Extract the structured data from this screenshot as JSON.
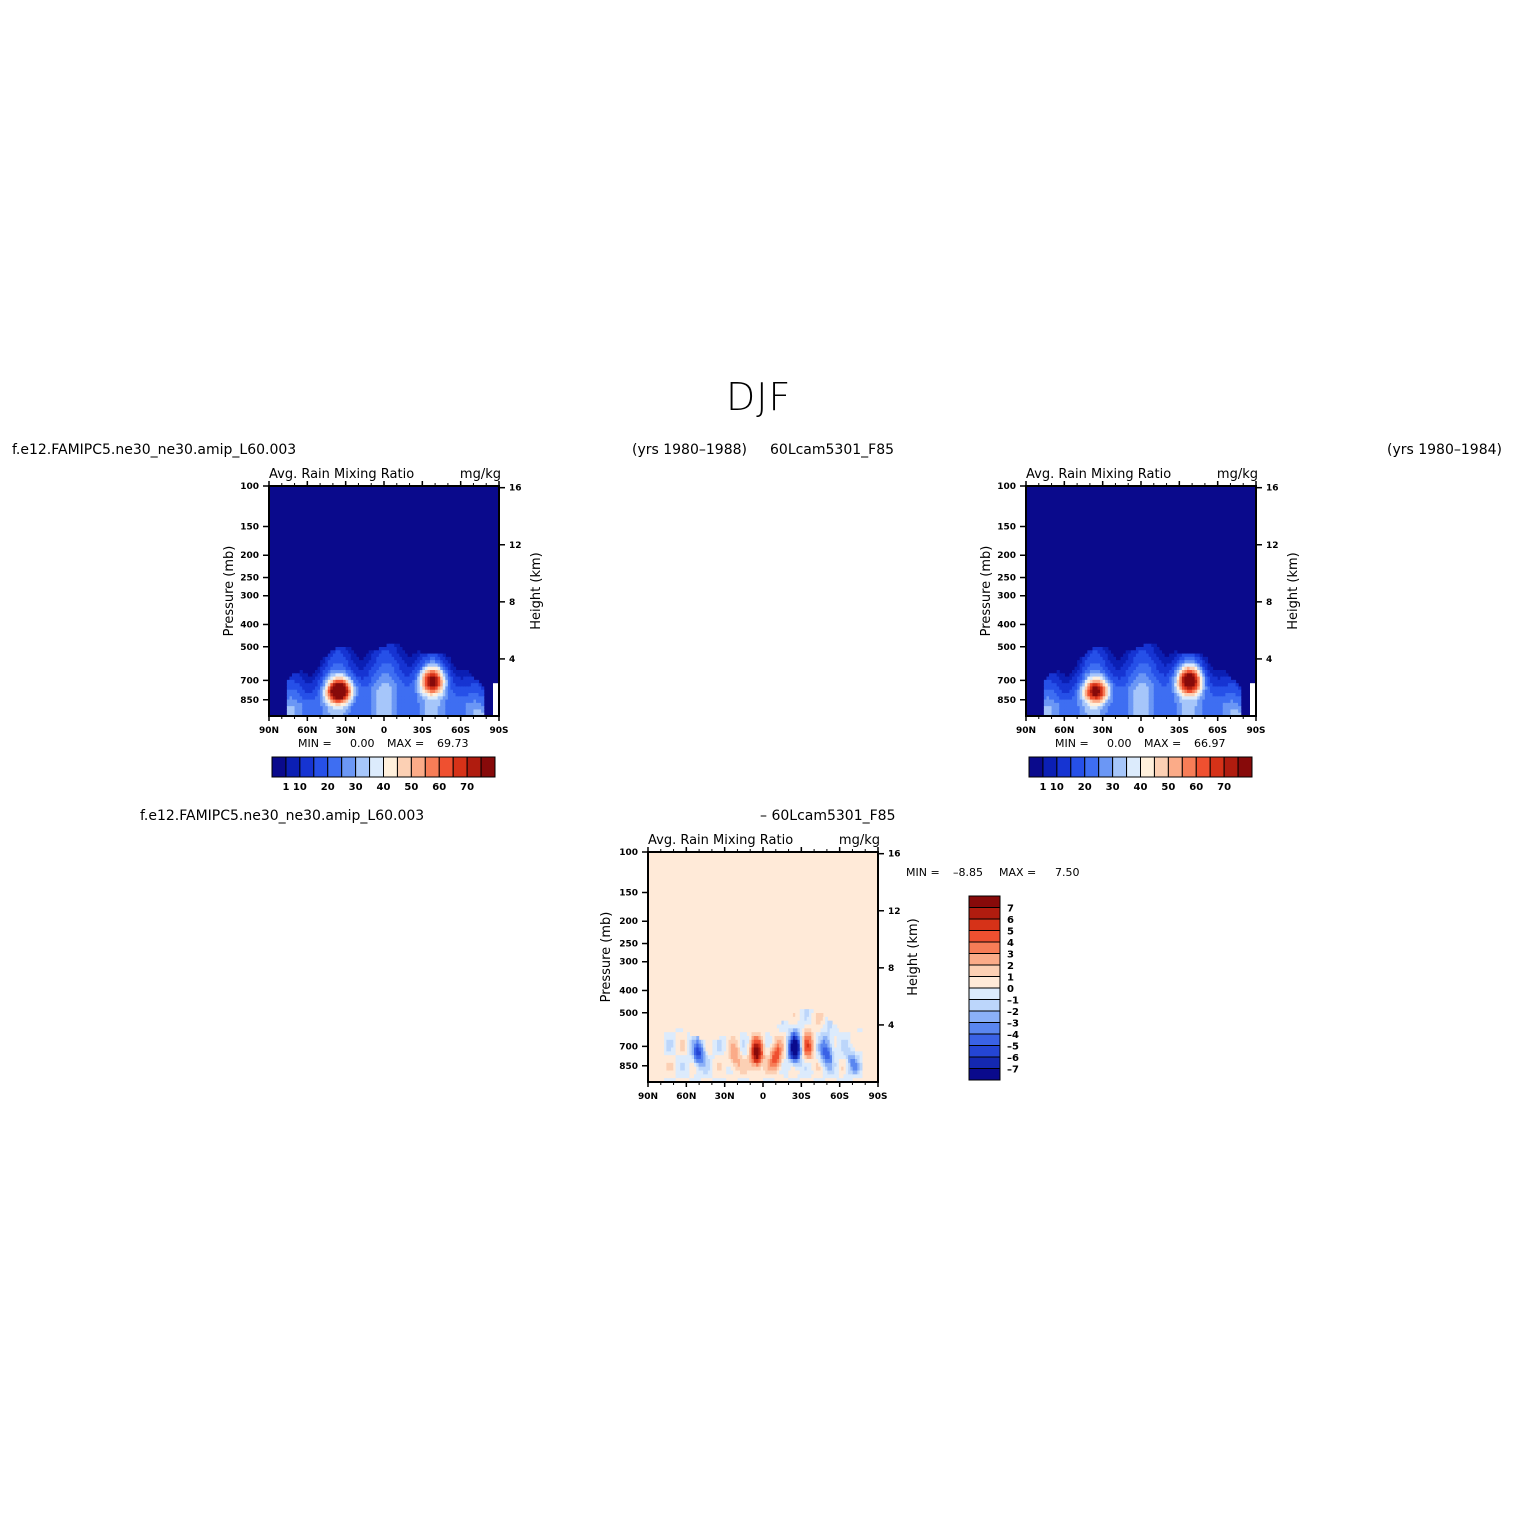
{
  "page": {
    "title": "DJF",
    "case1_label": "f.e12.FAMIPC5.ne30_ne30.amip_L60.003",
    "case1_years": "(yrs 1980–1988)",
    "case2_label": "60Lcam5301_F85",
    "case2_years": "(yrs 1980–1984)",
    "diff_left": "f.e12.FAMIPC5.ne30_ne30.amip_L60.003",
    "diff_right": "– 60Lcam5301_F85"
  },
  "chart_data": [
    {
      "id": "case1",
      "type": "heatmap",
      "title": "Avg. Rain Mixing Ratio",
      "units": "mg/kg",
      "ylabel": "Pressure (mb)",
      "ylabel_right": "Height (km)",
      "x_ticks": [
        "90N",
        "60N",
        "30N",
        "0",
        "30S",
        "60S",
        "90S"
      ],
      "y_ticks": [
        100,
        150,
        200,
        250,
        300,
        400,
        500,
        700,
        850
      ],
      "y_right_ticks": [
        4,
        8,
        12,
        16
      ],
      "ylim": [
        100,
        1000
      ],
      "xlim": [
        90,
        -90
      ],
      "min_label": "MIN =",
      "min_value": "0.00",
      "max_label": "MAX =",
      "max_value": "69.73",
      "colorbar_labels": [
        "1",
        "10",
        "20",
        "30",
        "40",
        "50",
        "60",
        "70"
      ],
      "colors": [
        "#0a0a8c",
        "#0b1fb4",
        "#1634d2",
        "#2650e8",
        "#3e6ef2",
        "#6b97f5",
        "#a6c6fa",
        "#dcebfc",
        "#fff0dc",
        "#fcd0b4",
        "#fbab88",
        "#f77d57",
        "#ef5030",
        "#d63218",
        "#b01c0f",
        "#870a0a"
      ],
      "maxima": [
        {
          "lat": 35,
          "p": 780,
          "value": 69.73
        },
        {
          "lat": -38,
          "p": 700,
          "value": 55
        }
      ]
    },
    {
      "id": "case2",
      "type": "heatmap",
      "title": "Avg. Rain Mixing Ratio",
      "units": "mg/kg",
      "ylabel": "Pressure (mb)",
      "ylabel_right": "Height (km)",
      "x_ticks": [
        "90N",
        "60N",
        "30N",
        "0",
        "30S",
        "60S",
        "90S"
      ],
      "y_ticks": [
        100,
        150,
        200,
        250,
        300,
        400,
        500,
        700,
        850
      ],
      "y_right_ticks": [
        4,
        8,
        12,
        16
      ],
      "ylim": [
        100,
        1000
      ],
      "xlim": [
        90,
        -90
      ],
      "min_label": "MIN =",
      "min_value": "0.00",
      "max_label": "MAX =",
      "max_value": "66.97",
      "colorbar_labels": [
        "1",
        "10",
        "20",
        "30",
        "40",
        "50",
        "60",
        "70"
      ],
      "colors": [
        "#0a0a8c",
        "#0b1fb4",
        "#1634d2",
        "#2650e8",
        "#3e6ef2",
        "#6b97f5",
        "#a6c6fa",
        "#dcebfc",
        "#fff0dc",
        "#fcd0b4",
        "#fbab88",
        "#f77d57",
        "#ef5030",
        "#d63218",
        "#b01c0f",
        "#870a0a"
      ],
      "maxima": [
        {
          "lat": 35,
          "p": 780,
          "value": 50
        },
        {
          "lat": -38,
          "p": 700,
          "value": 66.97
        }
      ]
    },
    {
      "id": "diff",
      "type": "heatmap",
      "title": "Avg. Rain Mixing Ratio",
      "units": "mg/kg",
      "ylabel": "Pressure (mb)",
      "ylabel_right": "Height (km)",
      "x_ticks": [
        "90N",
        "60N",
        "30N",
        "0",
        "30S",
        "60S",
        "90S"
      ],
      "y_ticks": [
        100,
        150,
        200,
        250,
        300,
        400,
        500,
        700,
        850
      ],
      "y_right_ticks": [
        4,
        8,
        12,
        16
      ],
      "ylim": [
        100,
        1000
      ],
      "xlim": [
        90,
        -90
      ],
      "min_label": "MIN =",
      "min_value": "–8.85",
      "max_label": "MAX =",
      "max_value": "7.50",
      "colorbar_labels": [
        "7",
        "6",
        "5",
        "4",
        "3",
        "2",
        "1",
        "0",
        "–1",
        "–2",
        "–3",
        "–4",
        "–5",
        "–6",
        "–7"
      ],
      "colors": [
        "#870a0a",
        "#b01c0f",
        "#d63218",
        "#ef5030",
        "#f77d57",
        "#fbab88",
        "#fcd0b4",
        "#ffead8",
        "#dcebfc",
        "#bcd6fb",
        "#8bb0f7",
        "#5a86f0",
        "#3a62e6",
        "#2445d4",
        "#1428b0",
        "#0a0a8c"
      ],
      "anomalies": [
        {
          "lat": 5,
          "p": 760,
          "value": 7.5
        },
        {
          "lat": -10,
          "p": 780,
          "value": 5
        },
        {
          "lat": 22,
          "p": 800,
          "value": 3
        },
        {
          "lat": -25,
          "p": 720,
          "value": -8.85
        },
        {
          "lat": -50,
          "p": 740,
          "value": -5
        },
        {
          "lat": 50,
          "p": 760,
          "value": -5
        },
        {
          "lat": -70,
          "p": 820,
          "value": -3
        },
        {
          "lat": -35,
          "p": 700,
          "value": 4
        }
      ]
    }
  ]
}
